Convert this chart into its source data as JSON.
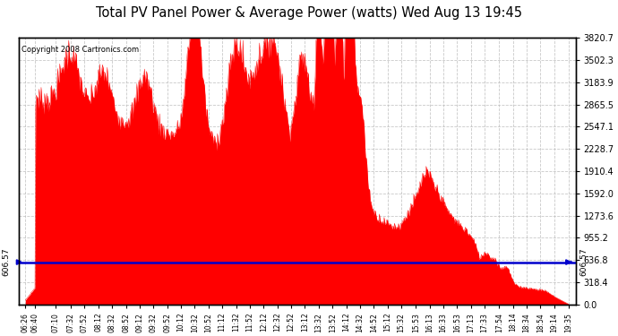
{
  "title": "Total PV Panel Power & Average Power (watts) Wed Aug 13 19:45",
  "copyright": "Copyright 2008 Cartronics.com",
  "average_power": 606.57,
  "y_max": 3820.7,
  "y_ticks": [
    0.0,
    318.4,
    636.8,
    955.2,
    1273.6,
    1592.0,
    1910.4,
    2228.7,
    2547.1,
    2865.5,
    3183.9,
    3502.3,
    3820.7
  ],
  "x_labels": [
    "06:26",
    "06:40",
    "07:10",
    "07:32",
    "07:52",
    "08:12",
    "08:32",
    "08:52",
    "09:12",
    "09:32",
    "09:52",
    "10:12",
    "10:32",
    "10:52",
    "11:12",
    "11:32",
    "11:52",
    "12:12",
    "12:32",
    "12:52",
    "13:12",
    "13:32",
    "13:52",
    "14:12",
    "14:32",
    "14:52",
    "15:12",
    "15:32",
    "15:53",
    "16:13",
    "16:33",
    "16:53",
    "17:13",
    "17:33",
    "17:54",
    "18:14",
    "18:34",
    "18:54",
    "19:14",
    "19:35"
  ],
  "fill_color": "#ff0000",
  "line_color": "#0000cc",
  "background_color": "#ffffff",
  "grid_color": "#bbbbbb",
  "border_color": "#000000",
  "title_color": "#000000",
  "copyright_color": "#000000",
  "avg_label_color": "#000000",
  "figsize": [
    6.9,
    3.75
  ],
  "dpi": 100
}
